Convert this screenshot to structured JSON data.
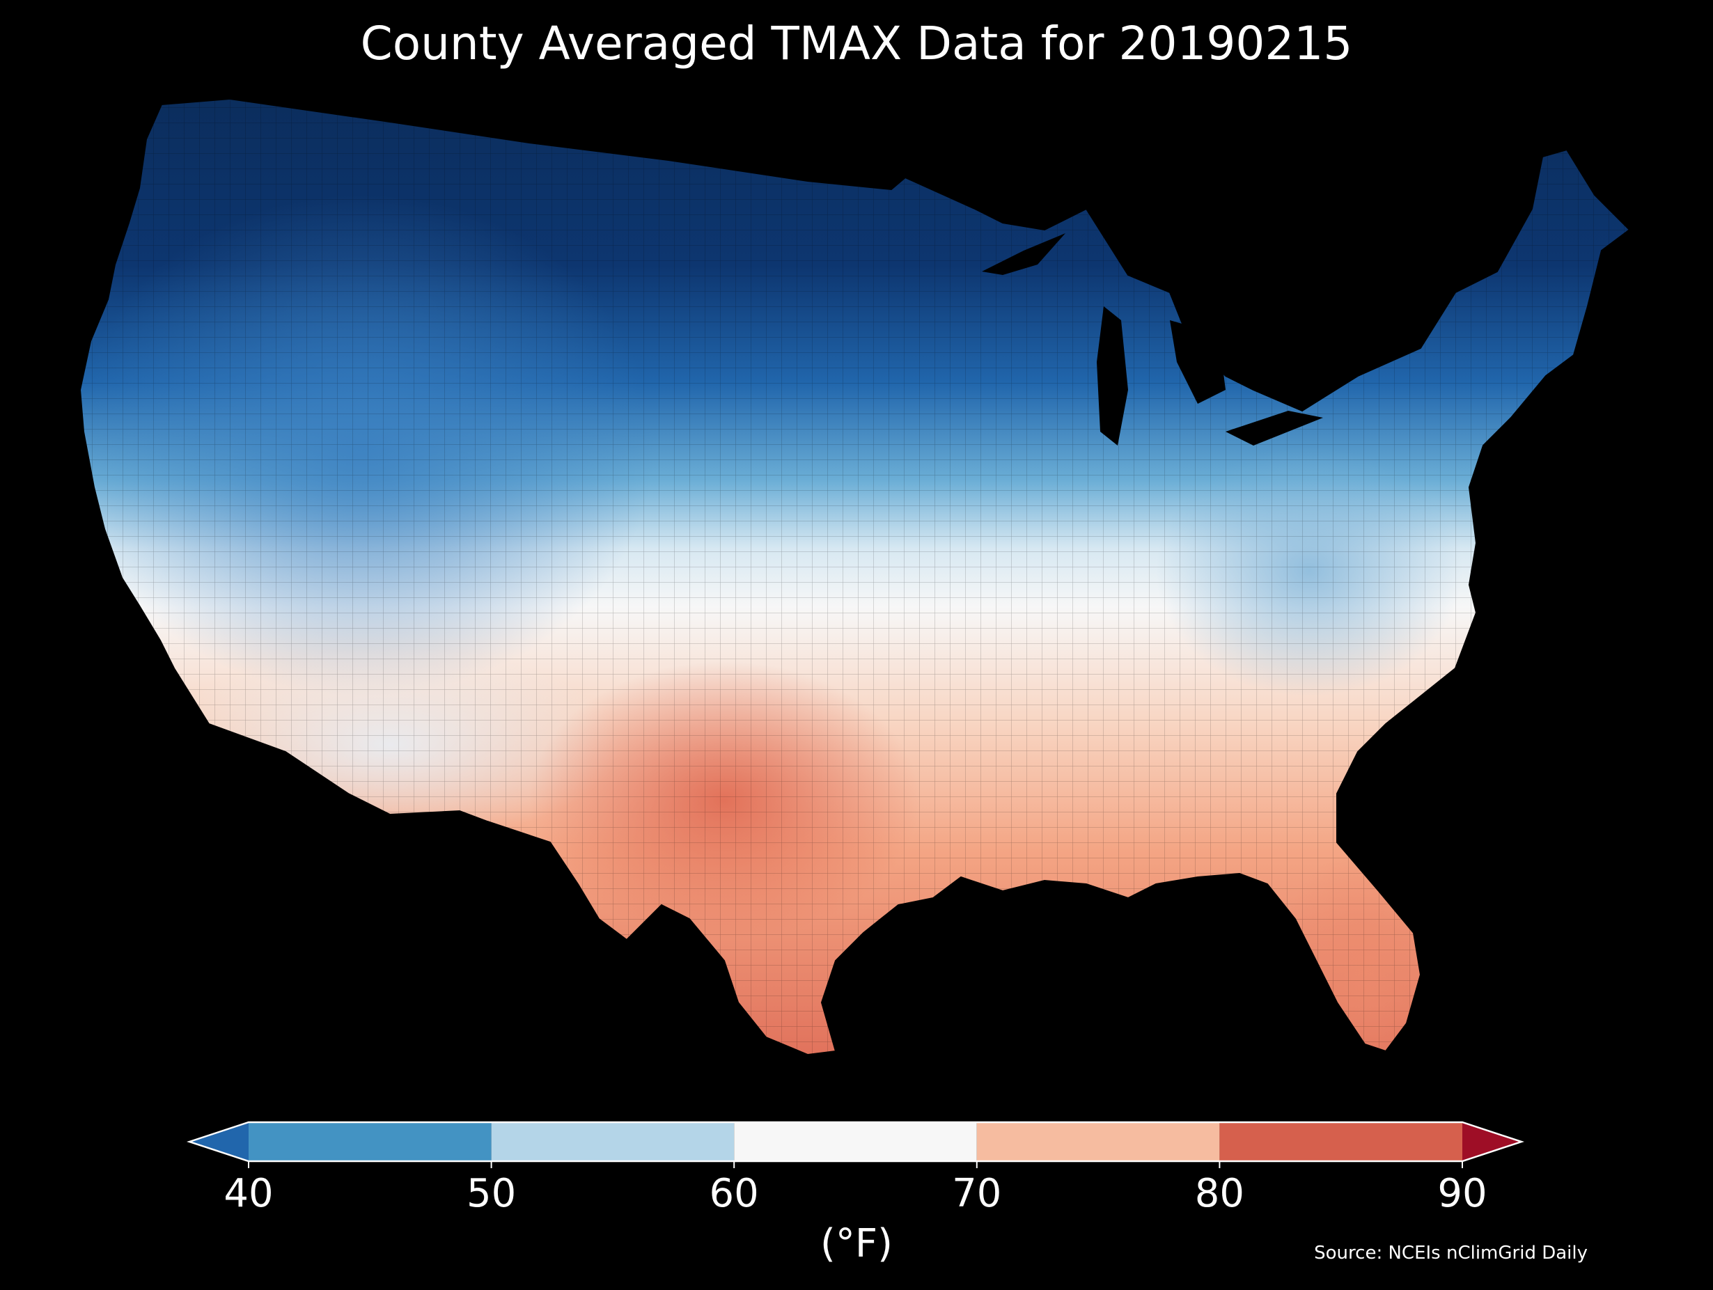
{
  "title": "County Averaged TMAX Data for 20190215",
  "colorbar": {
    "unit": "(°F)",
    "ticks": [
      "40",
      "50",
      "60",
      "70",
      "80",
      "90"
    ],
    "bins": [
      {
        "range": "<40",
        "color": "#2166ac"
      },
      {
        "range": "40-50",
        "color": "#4393c3"
      },
      {
        "range": "50-60",
        "color": "#b4d5e8"
      },
      {
        "range": "60-70",
        "color": "#f7f7f7"
      },
      {
        "range": "70-80",
        "color": "#f6bca0"
      },
      {
        "range": "80-90",
        "color": "#d6604d"
      },
      {
        "range": ">90",
        "color": "#9e0e26"
      }
    ],
    "extend": "both"
  },
  "source": "Source: NCEIs nClimGrid Daily",
  "map": {
    "region": "Contiguous United States counties",
    "variable": "TMAX",
    "date": "20190215",
    "background": "#000000",
    "coldest_fill": "#0b2d5c",
    "warmest_fill": "#e0705a"
  }
}
